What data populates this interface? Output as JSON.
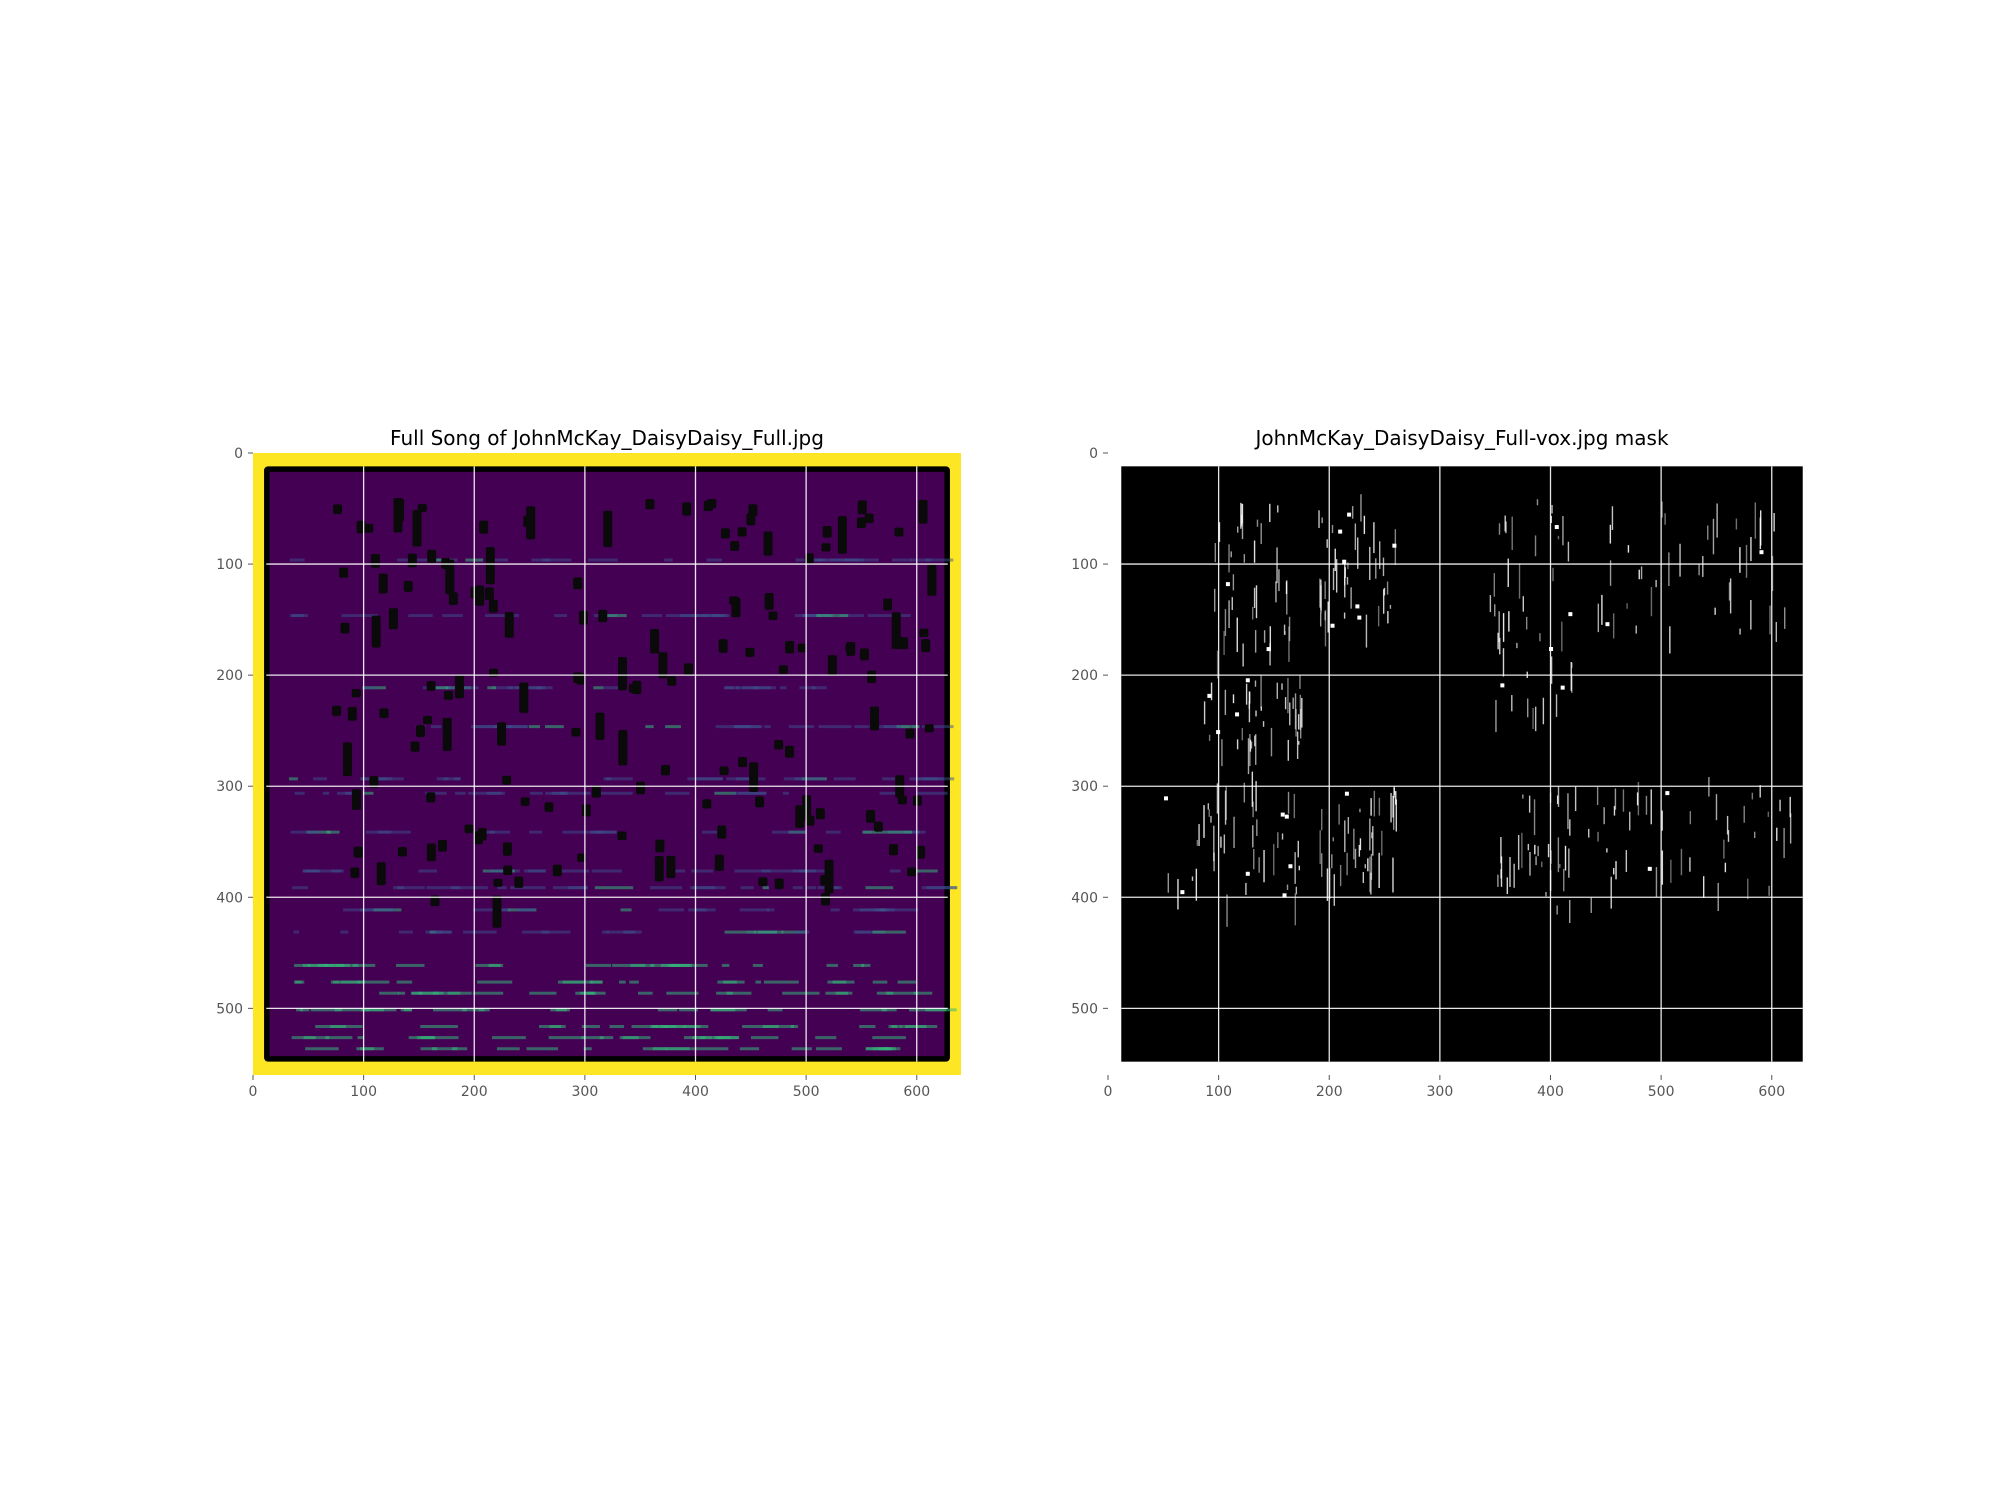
{
  "chart_data": [
    {
      "type": "heatmap",
      "title": "Full Song of JohnMcKay_DaisyDaisy_Full.jpg",
      "colormap": "viridis",
      "xlim": [
        0,
        640
      ],
      "ylim": [
        560,
        0
      ],
      "y_inverted": true,
      "xticks": [
        0,
        100,
        200,
        300,
        400,
        500,
        600
      ],
      "yticks": [
        0,
        100,
        200,
        300,
        400,
        500
      ],
      "grid": true,
      "colors": {
        "background": "#fde725",
        "border": "#000000",
        "field": "#440154",
        "highlight": "#35b779",
        "blob": "#0a0a0a"
      }
    },
    {
      "type": "heatmap",
      "title": "JohnMcKay_DaisyDaisy_Full-vox.jpg mask",
      "colormap": "gray",
      "xlim": [
        0,
        640
      ],
      "ylim": [
        560,
        0
      ],
      "y_inverted": true,
      "xticks": [
        0,
        100,
        200,
        300,
        400,
        500,
        600
      ],
      "yticks": [
        0,
        100,
        200,
        300,
        400,
        500
      ],
      "grid": true,
      "colors": {
        "background": "#000000",
        "mark": "#ffffff"
      }
    }
  ]
}
